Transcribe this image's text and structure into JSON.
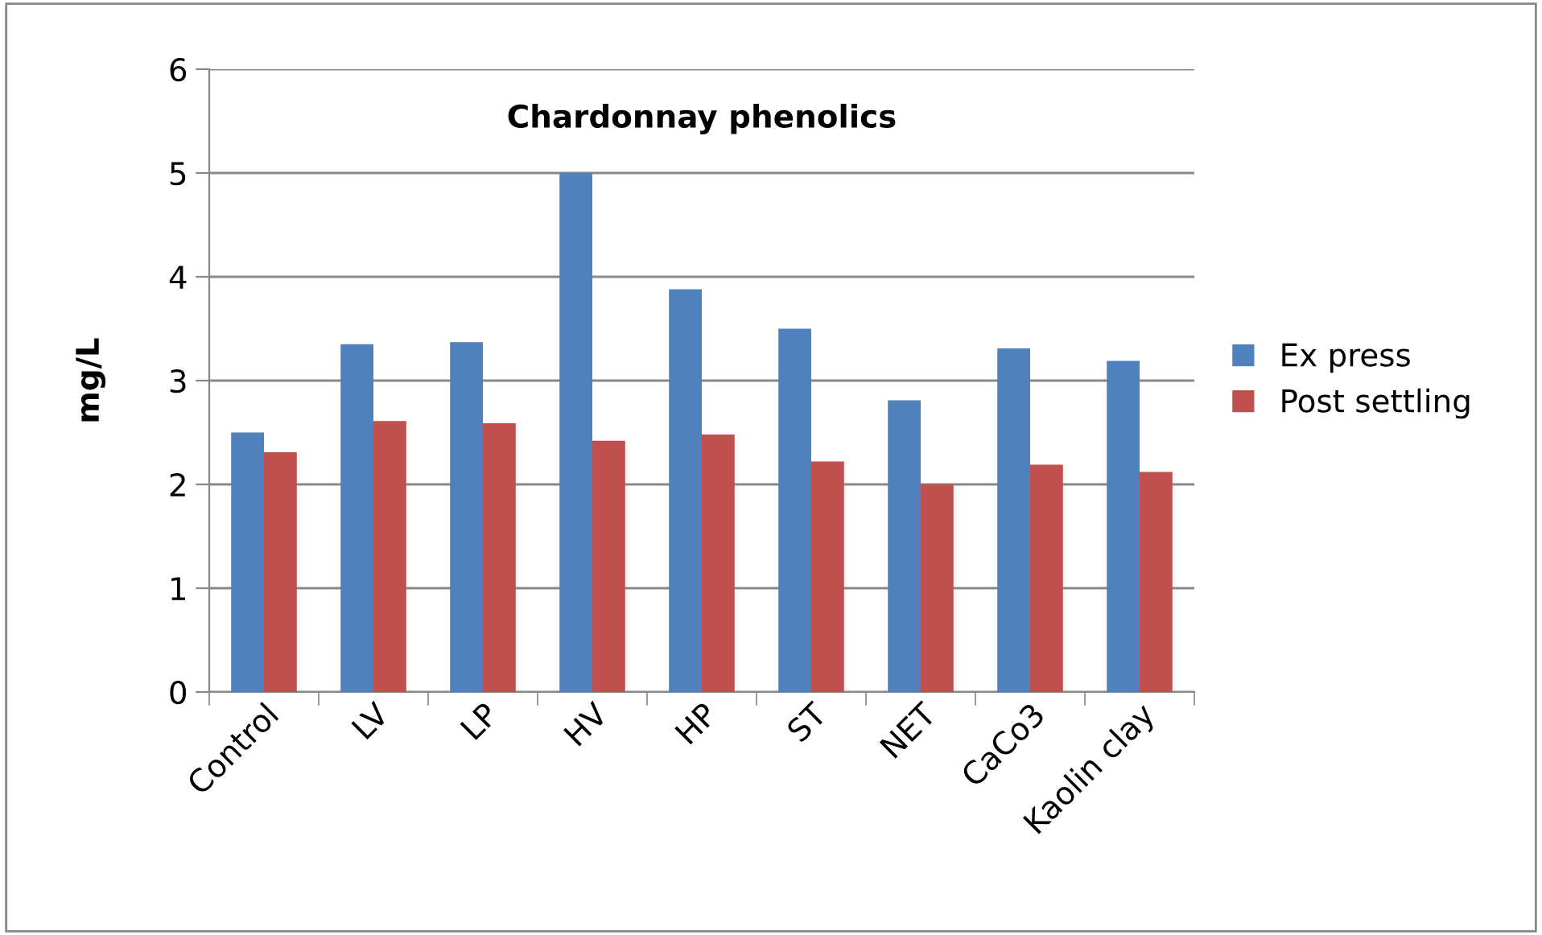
{
  "chart_data": {
    "type": "bar",
    "title": "Chardonnay phenolics",
    "ylabel": "mg/L",
    "categories": [
      "Control",
      "LV",
      "LP",
      "HV",
      "HP",
      "ST",
      "NET",
      "CaCo3",
      "Kaolin clay"
    ],
    "series": [
      {
        "name": "Ex press",
        "color": "#4f81bd",
        "values": [
          2.5,
          3.35,
          3.37,
          5.0,
          3.88,
          3.5,
          2.81,
          3.31,
          3.19
        ]
      },
      {
        "name": "Post settling",
        "color": "#c0504d",
        "values": [
          2.31,
          2.61,
          2.59,
          2.42,
          2.48,
          2.22,
          2.0,
          2.19,
          2.12
        ]
      }
    ],
    "ylim": [
      0,
      6
    ],
    "yticks": [
      0,
      1,
      2,
      3,
      4,
      5,
      6
    ],
    "grid": "y",
    "legend": "right"
  }
}
